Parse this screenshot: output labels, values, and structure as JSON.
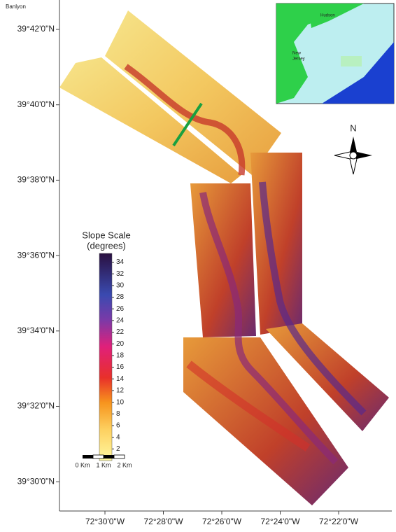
{
  "header": {
    "corner_label": "Banlyon"
  },
  "latitude_labels": [
    "39°42'0\"N",
    "39°40'0\"N",
    "39°38'0\"N",
    "39°36'0\"N",
    "39°34'0\"N",
    "39°32'0\"N",
    "39°30'0\"N"
  ],
  "longitude_labels": [
    "72°30'0\"W",
    "72°28'0\"W",
    "72°26'0\"W",
    "72°24'0\"W",
    "72°22'0\"W"
  ],
  "legend": {
    "title": "Slope Scale",
    "subtitle": "(degrees)",
    "ticks": [
      2,
      4,
      6,
      8,
      10,
      12,
      14,
      16,
      18,
      20,
      22,
      24,
      26,
      28,
      30,
      32,
      34
    ]
  },
  "scale_bar": [
    "0 Km",
    "1 Km",
    "2 Km"
  ],
  "compass": "N",
  "inset": {
    "labels": [
      "Hudson",
      "New",
      "Jersey"
    ]
  }
}
